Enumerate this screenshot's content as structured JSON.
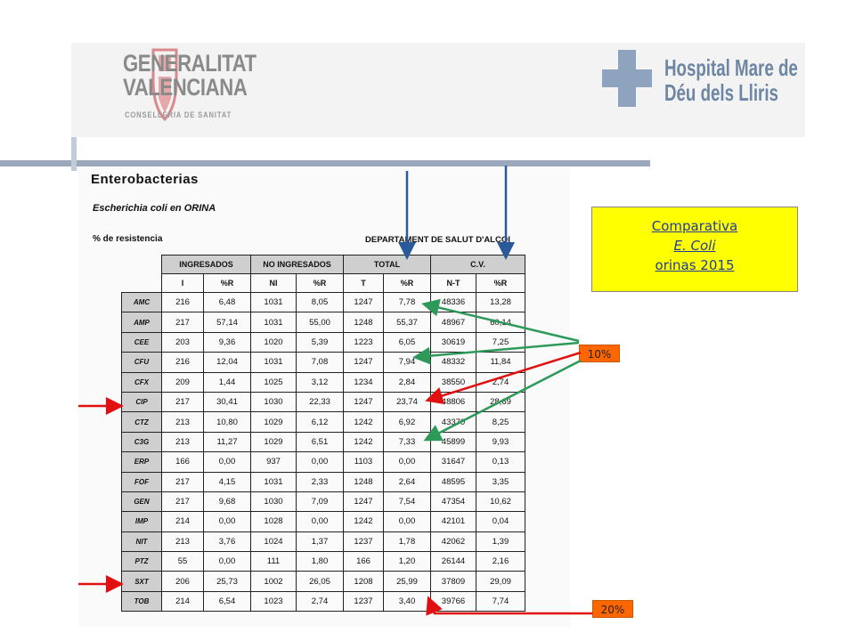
{
  "header": {
    "gv_line1": "GENERALITAT",
    "gv_line2": "VALENCIANA",
    "gv_sub": "CONSELLERIA DE SANITAT",
    "hospital_line1": "Hospital Mare de",
    "hospital_line2": "Déu dels Lliris"
  },
  "document": {
    "title": "Enterobacterias",
    "subtitle": "Escherichia coli  en ORINA",
    "resistance_label": "% de resistencia",
    "department": "DEPARTAMENT DE SALUT D'ALCOI",
    "groups": [
      "INGRESADOS",
      "NO INGRESADOS",
      "TOTAL",
      "C.V."
    ],
    "columns": [
      "I",
      "%R",
      "NI",
      "%R",
      "T",
      "%R",
      "N-T",
      "%R"
    ],
    "rows": [
      {
        "abx": "AMC",
        "v": [
          "216",
          "6,48",
          "1031",
          "8,05",
          "1247",
          "7,78",
          "48336",
          "13,28"
        ]
      },
      {
        "abx": "AMP",
        "v": [
          "217",
          "57,14",
          "1031",
          "55,00",
          "1248",
          "55,37",
          "48967",
          "60,14"
        ]
      },
      {
        "abx": "CEE",
        "v": [
          "203",
          "9,36",
          "1020",
          "5,39",
          "1223",
          "6,05",
          "30619",
          "7,25"
        ]
      },
      {
        "abx": "CFU",
        "v": [
          "216",
          "12,04",
          "1031",
          "7,08",
          "1247",
          "7,94",
          "48332",
          "11,84"
        ]
      },
      {
        "abx": "CFX",
        "v": [
          "209",
          "1,44",
          "1025",
          "3,12",
          "1234",
          "2,84",
          "38550",
          "2,74"
        ]
      },
      {
        "abx": "CIP",
        "v": [
          "217",
          "30,41",
          "1030",
          "22,33",
          "1247",
          "23,74",
          "48806",
          "28,69"
        ]
      },
      {
        "abx": "CTZ",
        "v": [
          "213",
          "10,80",
          "1029",
          "6,12",
          "1242",
          "6,92",
          "43370",
          "8,25"
        ]
      },
      {
        "abx": "C3G",
        "v": [
          "213",
          "11,27",
          "1029",
          "6,51",
          "1242",
          "7,33",
          "45899",
          "9,93"
        ]
      },
      {
        "abx": "ERP",
        "v": [
          "166",
          "0,00",
          "937",
          "0,00",
          "1103",
          "0,00",
          "31647",
          "0,13"
        ]
      },
      {
        "abx": "FOF",
        "v": [
          "217",
          "4,15",
          "1031",
          "2,33",
          "1248",
          "2,64",
          "48595",
          "3,35"
        ]
      },
      {
        "abx": "GEN",
        "v": [
          "217",
          "9,68",
          "1030",
          "7,09",
          "1247",
          "7,54",
          "47354",
          "10,62"
        ]
      },
      {
        "abx": "IMP",
        "v": [
          "214",
          "0,00",
          "1028",
          "0,00",
          "1242",
          "0,00",
          "42101",
          "0,04"
        ]
      },
      {
        "abx": "NIT",
        "v": [
          "213",
          "3,76",
          "1024",
          "1,37",
          "1237",
          "1,78",
          "42062",
          "1,39"
        ]
      },
      {
        "abx": "PTZ",
        "v": [
          "55",
          "0,00",
          "111",
          "1,80",
          "166",
          "1,20",
          "26144",
          "2,16"
        ]
      },
      {
        "abx": "SXT",
        "v": [
          "206",
          "25,73",
          "1002",
          "26,05",
          "1208",
          "25,99",
          "37809",
          "29,09"
        ]
      },
      {
        "abx": "TOB",
        "v": [
          "214",
          "6,54",
          "1023",
          "2,74",
          "1237",
          "3,40",
          "39766",
          "7,74"
        ]
      }
    ]
  },
  "callout": {
    "line1": "Comparativa",
    "line2": "E. Coli ",
    "line3": "orinas 2015"
  },
  "badges": {
    "ten": "10%",
    "twenty": "20%"
  },
  "colors": {
    "callout_bg": "#ffff00",
    "badge_bg": "#ff6600",
    "arrow_green": "#2e9a5a",
    "arrow_red": "#e01010",
    "arrow_blue": "#2a5a9a"
  }
}
